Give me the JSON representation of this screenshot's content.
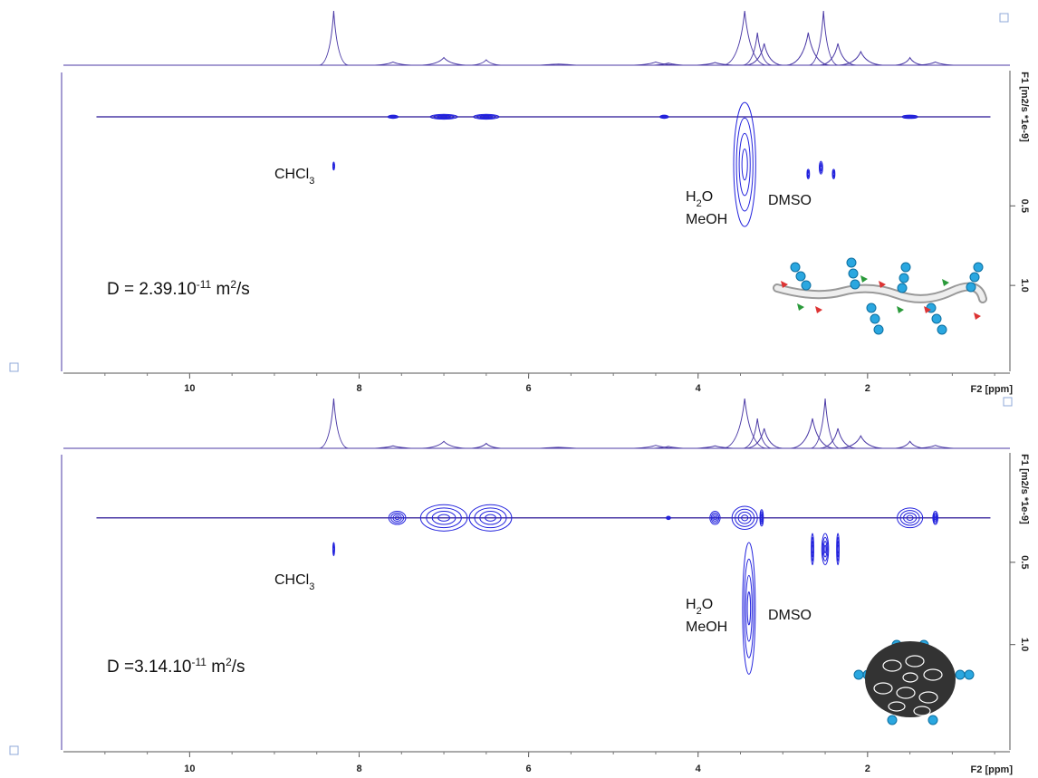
{
  "chart_data": [
    {
      "type": "dosy",
      "xlabel": "F2 [ppm]",
      "ylabel": "F1 [m2/s *1e-9]",
      "xlim": [
        11.49,
        0.32
      ],
      "ylim": [
        -0.35,
        1.54
      ],
      "xticks": [
        10,
        8,
        6,
        4,
        2
      ],
      "yticks": [
        0.5,
        {
          "value": 1,
          "label": "1.0"
        }
      ],
      "color": "#2222dd",
      "line_color": "#4b3aa6",
      "baseline_y": -0.06,
      "projection": {
        "x": [
          8.3,
          7.6,
          7.0,
          6.5,
          5.65,
          4.5,
          4.35,
          3.8,
          3.45,
          3.3,
          3.22,
          2.7,
          2.52,
          2.35,
          2.08,
          1.5,
          1.2
        ],
        "values": [
          100,
          6,
          14,
          10,
          2,
          6,
          4,
          5,
          100,
          60,
          40,
          60,
          100,
          40,
          25,
          14,
          6
        ]
      },
      "signals": [
        {
          "x": 7.6,
          "y": -0.06,
          "width": 0.12,
          "height": 0.02
        },
        {
          "x": 7.0,
          "y": -0.06,
          "width": 0.32,
          "height": 0.03
        },
        {
          "x": 6.5,
          "y": -0.06,
          "width": 0.3,
          "height": 0.03
        },
        {
          "x": 4.4,
          "y": -0.06,
          "width": 0.1,
          "height": 0.02
        },
        {
          "x": 1.5,
          "y": -0.06,
          "width": 0.18,
          "height": 0.02
        },
        {
          "x": 8.3,
          "y": 0.25,
          "width": 0.02,
          "height": 0.05
        },
        {
          "x": 2.7,
          "y": 0.3,
          "width": 0.03,
          "height": 0.06
        },
        {
          "x": 2.55,
          "y": 0.26,
          "width": 0.04,
          "height": 0.08
        },
        {
          "x": 2.4,
          "y": 0.3,
          "width": 0.03,
          "height": 0.06
        },
        {
          "x": 3.45,
          "y": 0.24,
          "width": 0.26,
          "height": 0.78
        }
      ],
      "annotations": [
        {
          "parts": [
            {
              "text": "CHCl"
            },
            {
              "sub": "3"
            }
          ]
        },
        {
          "parts": [
            {
              "text": "H"
            },
            {
              "sub": "2"
            },
            {
              "text": "O"
            }
          ]
        },
        {
          "parts": [
            {
              "text": "MeOH"
            }
          ]
        },
        {
          "parts": [
            {
              "text": "DMSO"
            }
          ]
        },
        {
          "parts": [
            {
              "text": "D = 2.39.10"
            },
            {
              "sup": "-11"
            },
            {
              "text": " m"
            },
            {
              "sup": "2"
            },
            {
              "text": "/s"
            }
          ]
        }
      ]
    },
    {
      "type": "dosy",
      "xlabel": "F2 [ppm]",
      "ylabel": "F1 [m2/s *1e-9]",
      "xlim": [
        11.49,
        0.32
      ],
      "ylim": [
        -0.165,
        1.64
      ],
      "xticks": [
        10,
        8,
        6,
        4,
        2
      ],
      "yticks": [
        0.5,
        {
          "value": 1,
          "label": "1.0"
        }
      ],
      "color": "#2222dd",
      "line_color": "#4b3aa6",
      "baseline_y": 0.23,
      "projection": {
        "x": [
          8.3,
          7.6,
          7.0,
          6.5,
          5.65,
          4.5,
          4.35,
          3.8,
          3.45,
          3.3,
          3.22,
          2.65,
          2.5,
          2.35,
          2.08,
          1.5,
          1.2
        ],
        "values": [
          100,
          5,
          14,
          10,
          2,
          6,
          4,
          5,
          100,
          60,
          40,
          60,
          100,
          40,
          25,
          14,
          6
        ]
      },
      "signals": [
        {
          "x": 7.55,
          "y": 0.23,
          "width": 0.2,
          "height": 0.08
        },
        {
          "x": 7.0,
          "y": 0.23,
          "width": 0.55,
          "height": 0.16
        },
        {
          "x": 6.45,
          "y": 0.23,
          "width": 0.5,
          "height": 0.16
        },
        {
          "x": 4.35,
          "y": 0.23,
          "width": 0.05,
          "height": 0.02
        },
        {
          "x": 3.8,
          "y": 0.23,
          "width": 0.12,
          "height": 0.08
        },
        {
          "x": 3.45,
          "y": 0.23,
          "width": 0.3,
          "height": 0.14
        },
        {
          "x": 3.25,
          "y": 0.23,
          "width": 0.04,
          "height": 0.1
        },
        {
          "x": 1.5,
          "y": 0.23,
          "width": 0.3,
          "height": 0.12
        },
        {
          "x": 1.2,
          "y": 0.23,
          "width": 0.06,
          "height": 0.08
        },
        {
          "x": 8.3,
          "y": 0.42,
          "width": 0.02,
          "height": 0.08
        },
        {
          "x": 2.65,
          "y": 0.42,
          "width": 0.03,
          "height": 0.19
        },
        {
          "x": 2.5,
          "y": 0.42,
          "width": 0.08,
          "height": 0.19
        },
        {
          "x": 2.35,
          "y": 0.42,
          "width": 0.03,
          "height": 0.19
        },
        {
          "x": 3.4,
          "y": 0.78,
          "width": 0.15,
          "height": 0.8
        }
      ],
      "annotations": [
        {
          "parts": [
            {
              "text": "CHCl"
            },
            {
              "sub": "3"
            }
          ]
        },
        {
          "parts": [
            {
              "text": "H"
            },
            {
              "sub": "2"
            },
            {
              "text": "O"
            }
          ]
        },
        {
          "parts": [
            {
              "text": "MeOH"
            }
          ]
        },
        {
          "parts": [
            {
              "text": "DMSO"
            }
          ]
        },
        {
          "parts": [
            {
              "text": "D =3.14.10"
            },
            {
              "sup": "-11"
            },
            {
              "text": " m"
            },
            {
              "sup": "2"
            },
            {
              "text": "/s"
            }
          ]
        }
      ]
    }
  ]
}
